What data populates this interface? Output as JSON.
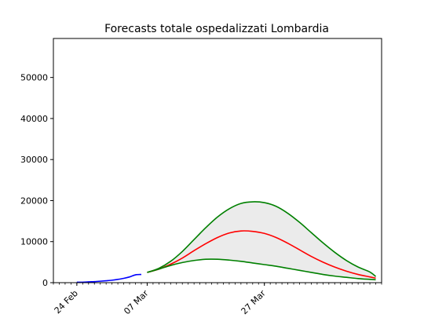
{
  "chart_data": {
    "type": "line",
    "title": "Forecasts totale ospedalizzati Lombardia",
    "xlabel": "",
    "ylabel": "",
    "x_range": [
      "2020-02-20",
      "2020-04-16"
    ],
    "ylim": [
      0,
      59500
    ],
    "yticks": [
      0,
      10000,
      20000,
      30000,
      40000,
      50000
    ],
    "ytick_labels": [
      "0",
      "10000",
      "20000",
      "30000",
      "40000",
      "50000"
    ],
    "xticks": [
      {
        "date": "2020-02-24",
        "label": "24 Feb"
      },
      {
        "date": "2020-03-07",
        "label": "07 Mar"
      },
      {
        "date": "2020-03-27",
        "label": "27 Mar"
      }
    ],
    "minor_ticks": "daily",
    "grid": false,
    "legend": "none",
    "band": {
      "color": "#ebebeb",
      "between": [
        "upper",
        "lower"
      ]
    },
    "series": [
      {
        "role": "observed",
        "color": "#0000ff",
        "points": [
          [
            "2020-02-24",
            100
          ],
          [
            "2020-02-25",
            120
          ],
          [
            "2020-02-26",
            200
          ],
          [
            "2020-02-27",
            260
          ],
          [
            "2020-02-28",
            360
          ],
          [
            "2020-02-29",
            470
          ],
          [
            "2020-03-01",
            600
          ],
          [
            "2020-03-02",
            800
          ],
          [
            "2020-03-03",
            1050
          ],
          [
            "2020-03-04",
            1400
          ],
          [
            "2020-03-05",
            1900
          ],
          [
            "2020-03-06",
            2000
          ]
        ]
      },
      {
        "role": "upper",
        "color": "#008000",
        "points": [
          [
            "2020-03-07",
            2500
          ],
          [
            "2020-03-09",
            3500
          ],
          [
            "2020-03-11",
            5200
          ],
          [
            "2020-03-13",
            7600
          ],
          [
            "2020-03-15",
            10500
          ],
          [
            "2020-03-17",
            13400
          ],
          [
            "2020-03-19",
            16000
          ],
          [
            "2020-03-21",
            18000
          ],
          [
            "2020-03-23",
            19300
          ],
          [
            "2020-03-25",
            19700
          ],
          [
            "2020-03-27",
            19500
          ],
          [
            "2020-03-29",
            18600
          ],
          [
            "2020-03-31",
            16900
          ],
          [
            "2020-04-02",
            14700
          ],
          [
            "2020-04-04",
            12200
          ],
          [
            "2020-04-06",
            9700
          ],
          [
            "2020-04-08",
            7400
          ],
          [
            "2020-04-10",
            5400
          ],
          [
            "2020-04-12",
            3800
          ],
          [
            "2020-04-14",
            2600
          ],
          [
            "2020-04-15",
            1500
          ]
        ]
      },
      {
        "role": "central",
        "color": "#ff0000",
        "points": [
          [
            "2020-03-07",
            2500
          ],
          [
            "2020-03-09",
            3300
          ],
          [
            "2020-03-11",
            4500
          ],
          [
            "2020-03-13",
            6000
          ],
          [
            "2020-03-15",
            7800
          ],
          [
            "2020-03-17",
            9500
          ],
          [
            "2020-03-19",
            11000
          ],
          [
            "2020-03-21",
            12100
          ],
          [
            "2020-03-23",
            12600
          ],
          [
            "2020-03-25",
            12500
          ],
          [
            "2020-03-27",
            12000
          ],
          [
            "2020-03-29",
            11000
          ],
          [
            "2020-03-31",
            9600
          ],
          [
            "2020-04-02",
            8000
          ],
          [
            "2020-04-04",
            6400
          ],
          [
            "2020-04-06",
            5000
          ],
          [
            "2020-04-08",
            3800
          ],
          [
            "2020-04-10",
            2800
          ],
          [
            "2020-04-12",
            2000
          ],
          [
            "2020-04-14",
            1400
          ],
          [
            "2020-04-15",
            1100
          ]
        ]
      },
      {
        "role": "lower",
        "color": "#008000",
        "points": [
          [
            "2020-03-07",
            2500
          ],
          [
            "2020-03-09",
            3300
          ],
          [
            "2020-03-11",
            4200
          ],
          [
            "2020-03-13",
            4900
          ],
          [
            "2020-03-15",
            5400
          ],
          [
            "2020-03-17",
            5700
          ],
          [
            "2020-03-19",
            5700
          ],
          [
            "2020-03-21",
            5500
          ],
          [
            "2020-03-23",
            5200
          ],
          [
            "2020-03-25",
            4800
          ],
          [
            "2020-03-27",
            4400
          ],
          [
            "2020-03-29",
            4000
          ],
          [
            "2020-03-31",
            3500
          ],
          [
            "2020-04-02",
            3000
          ],
          [
            "2020-04-04",
            2500
          ],
          [
            "2020-04-06",
            2000
          ],
          [
            "2020-04-08",
            1600
          ],
          [
            "2020-04-10",
            1300
          ],
          [
            "2020-04-12",
            1000
          ],
          [
            "2020-04-14",
            800
          ],
          [
            "2020-04-15",
            700
          ]
        ]
      }
    ]
  }
}
